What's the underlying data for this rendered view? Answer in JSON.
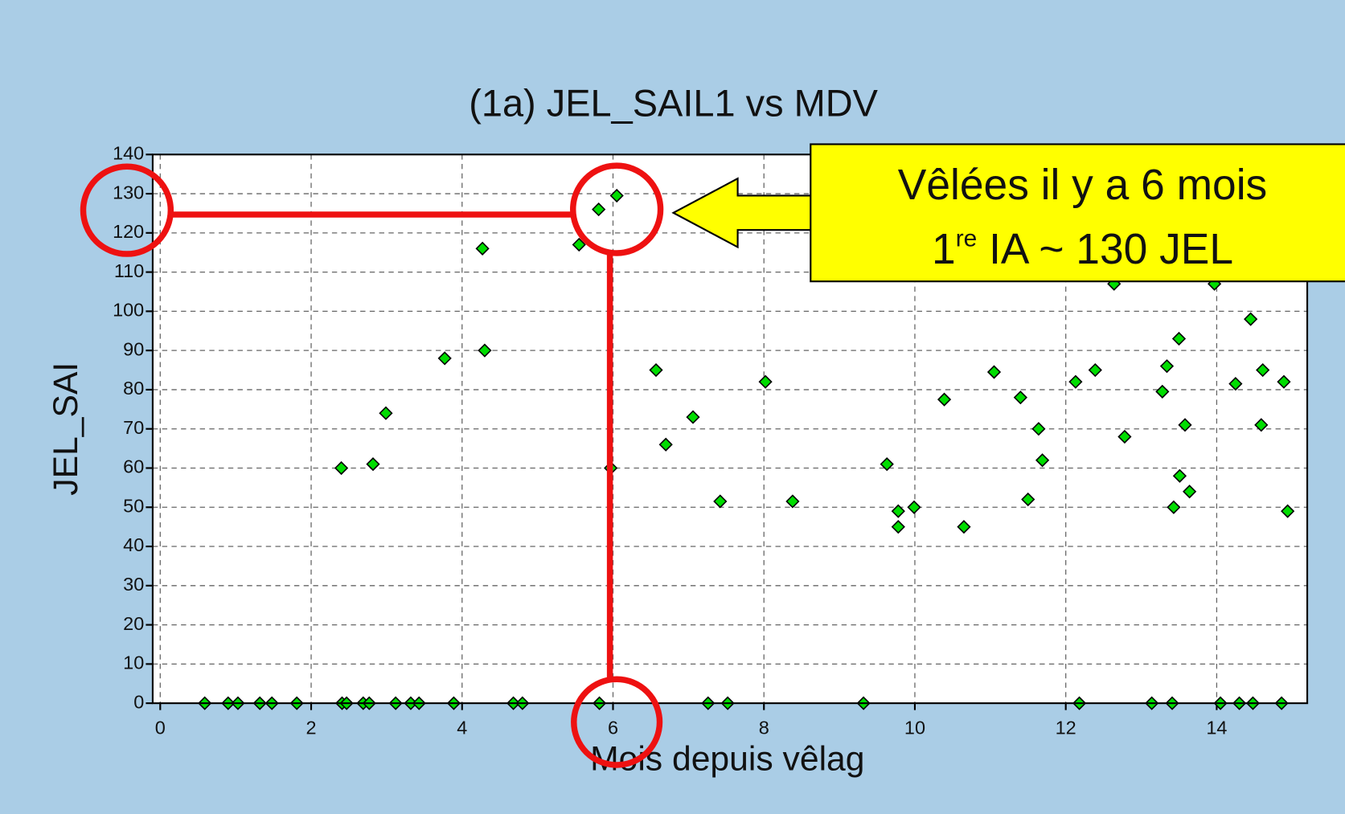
{
  "chart_data": {
    "type": "scatter",
    "title": "(1a) JEL_SAIL1 vs MDV",
    "x_label": "Mois depuis vêlag",
    "y_label": "JEL_SAI",
    "color": "#00dd00",
    "grid": true,
    "xlim": [
      -0.1,
      15.2
    ],
    "ylim": [
      0,
      140
    ],
    "xticks": [
      0,
      2,
      4,
      6,
      8,
      10,
      12,
      14
    ],
    "yticks": [
      0,
      10,
      20,
      30,
      40,
      50,
      60,
      70,
      80,
      90,
      100,
      110,
      120,
      130,
      140
    ],
    "x": [
      5.81,
      6.05,
      5.55,
      4.27,
      4.3,
      3.77,
      2.99,
      2.4,
      2.82,
      5.97,
      6.57,
      6.7,
      7.06,
      7.42,
      8.02,
      8.38,
      9.63,
      9.78,
      9.78,
      9.99,
      10.39,
      10.65,
      11.05,
      11.4,
      11.64,
      11.69,
      11.5,
      12.13,
      12.39,
      12.64,
      12.78,
      13.28,
      13.34,
      13.5,
      13.51,
      13.58,
      13.64,
      13.43,
      13.97,
      14.25,
      14.45,
      14.61,
      14.59,
      14.89,
      14.94,
      0.59,
      0.9,
      1.03,
      1.32,
      1.48,
      1.81,
      2.41,
      2.47,
      2.69,
      2.77,
      3.12,
      3.32,
      3.43,
      3.89,
      4.68,
      4.8,
      5.82,
      7.26,
      7.52,
      9.32,
      12.18,
      13.14,
      13.41,
      14.05,
      14.3,
      14.48,
      14.86
    ],
    "values": [
      126,
      129.5,
      117,
      116,
      90,
      88,
      74,
      60,
      61,
      60,
      85,
      66,
      73,
      51.5,
      82,
      51.5,
      61,
      49,
      45,
      50,
      77.5,
      45,
      84.5,
      78,
      70,
      62,
      52,
      82,
      85,
      107,
      68,
      79.5,
      86,
      93,
      58,
      71,
      54,
      50,
      107,
      81.5,
      98,
      85,
      71,
      82,
      49,
      0,
      0,
      0,
      0,
      0,
      0,
      0,
      0,
      0,
      0,
      0,
      0,
      0,
      0,
      0,
      0,
      0,
      0,
      0,
      0,
      0,
      0,
      0,
      0,
      0,
      0,
      0
    ],
    "annotation": {
      "line1": "Vêlées il y a 6 mois",
      "line2_a": "1",
      "line2_sup": "re",
      "line2_b": " IA ~ 130 JEL"
    }
  }
}
